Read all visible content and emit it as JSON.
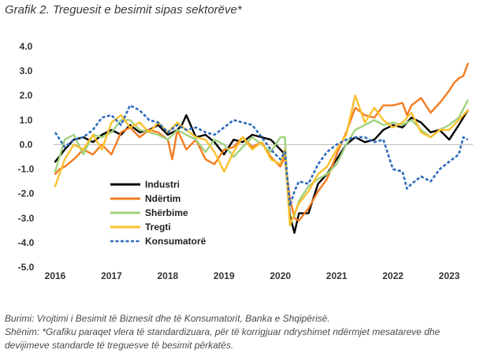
{
  "title": "Grafik 2. Treguesit e besimit sipas sektorëve*",
  "chart_data": {
    "type": "line",
    "x_ticks": [
      "2016",
      "2017",
      "2018",
      "2019",
      "2020",
      "2021",
      "2022",
      "2023"
    ],
    "y_ticks": [
      "4.0",
      "3.0",
      "2.0",
      "1.0",
      "0.0",
      "-1.0",
      "-2.0",
      "-3.0",
      "-4.0",
      "-5.0"
    ],
    "ylim": [
      -5.0,
      4.0
    ],
    "xlim": [
      2016.0,
      2023.42
    ],
    "legend_position": "center-left",
    "series": [
      {
        "name": "Industri",
        "color": "#000000",
        "dash": false,
        "points": [
          [
            2016.0,
            -0.7
          ],
          [
            2016.17,
            -0.2
          ],
          [
            2016.33,
            0.2
          ],
          [
            2016.5,
            0.3
          ],
          [
            2016.67,
            0.1
          ],
          [
            2016.83,
            0.4
          ],
          [
            2017.0,
            0.6
          ],
          [
            2017.17,
            0.4
          ],
          [
            2017.33,
            0.8
          ],
          [
            2017.5,
            0.5
          ],
          [
            2017.67,
            0.6
          ],
          [
            2017.83,
            0.8
          ],
          [
            2018.0,
            0.4
          ],
          [
            2018.17,
            0.6
          ],
          [
            2018.25,
            0.8
          ],
          [
            2018.33,
            1.2
          ],
          [
            2018.5,
            0.3
          ],
          [
            2018.67,
            0.4
          ],
          [
            2018.83,
            0.1
          ],
          [
            2019.0,
            -0.4
          ],
          [
            2019.17,
            0.2
          ],
          [
            2019.33,
            0.1
          ],
          [
            2019.5,
            0.4
          ],
          [
            2019.67,
            0.3
          ],
          [
            2019.83,
            0.2
          ],
          [
            2020.0,
            -0.2
          ],
          [
            2020.08,
            -0.4
          ],
          [
            2020.17,
            -2.9
          ],
          [
            2020.25,
            -3.6
          ],
          [
            2020.33,
            -2.8
          ],
          [
            2020.5,
            -2.8
          ],
          [
            2020.67,
            -1.6
          ],
          [
            2020.83,
            -1.2
          ],
          [
            2021.0,
            -0.6
          ],
          [
            2021.17,
            0.0
          ],
          [
            2021.33,
            0.3
          ],
          [
            2021.5,
            0.1
          ],
          [
            2021.67,
            0.2
          ],
          [
            2021.83,
            0.6
          ],
          [
            2022.0,
            0.8
          ],
          [
            2022.17,
            0.7
          ],
          [
            2022.33,
            1.1
          ],
          [
            2022.5,
            0.9
          ],
          [
            2022.67,
            0.5
          ],
          [
            2022.83,
            0.6
          ],
          [
            2023.0,
            0.2
          ],
          [
            2023.17,
            0.8
          ],
          [
            2023.33,
            1.4
          ]
        ]
      },
      {
        "name": "Ndërtim",
        "color": "#f47c20",
        "dash": false,
        "points": [
          [
            2016.0,
            -1.2
          ],
          [
            2016.08,
            -1.0
          ],
          [
            2016.17,
            -0.9
          ],
          [
            2016.33,
            -0.6
          ],
          [
            2016.5,
            -0.2
          ],
          [
            2016.67,
            -0.4
          ],
          [
            2016.83,
            0.0
          ],
          [
            2017.0,
            -0.4
          ],
          [
            2017.17,
            0.5
          ],
          [
            2017.33,
            0.7
          ],
          [
            2017.5,
            0.3
          ],
          [
            2017.67,
            0.6
          ],
          [
            2017.83,
            0.5
          ],
          [
            2018.0,
            0.2
          ],
          [
            2018.08,
            -0.6
          ],
          [
            2018.17,
            0.6
          ],
          [
            2018.33,
            -0.2
          ],
          [
            2018.5,
            0.2
          ],
          [
            2018.67,
            -0.6
          ],
          [
            2018.83,
            -0.8
          ],
          [
            2019.0,
            -0.2
          ],
          [
            2019.17,
            -0.1
          ],
          [
            2019.33,
            0.3
          ],
          [
            2019.5,
            -0.1
          ],
          [
            2019.67,
            0.1
          ],
          [
            2019.83,
            -0.5
          ],
          [
            2020.0,
            -0.9
          ],
          [
            2020.08,
            -0.5
          ],
          [
            2020.17,
            -2.2
          ],
          [
            2020.25,
            -3.0
          ],
          [
            2020.33,
            -3.1
          ],
          [
            2020.5,
            -2.6
          ],
          [
            2020.67,
            -1.9
          ],
          [
            2020.83,
            -1.4
          ],
          [
            2021.0,
            -0.4
          ],
          [
            2021.17,
            0.5
          ],
          [
            2021.33,
            1.5
          ],
          [
            2021.5,
            1.2
          ],
          [
            2021.67,
            1.1
          ],
          [
            2021.83,
            1.6
          ],
          [
            2022.0,
            1.6
          ],
          [
            2022.17,
            1.7
          ],
          [
            2022.25,
            1.2
          ],
          [
            2022.33,
            1.6
          ],
          [
            2022.5,
            1.9
          ],
          [
            2022.67,
            1.3
          ],
          [
            2022.83,
            1.7
          ],
          [
            2023.0,
            2.2
          ],
          [
            2023.08,
            2.5
          ],
          [
            2023.17,
            2.7
          ],
          [
            2023.25,
            2.8
          ],
          [
            2023.33,
            3.3
          ]
        ]
      },
      {
        "name": "Shërbime",
        "color": "#9fd27e",
        "dash": false,
        "points": [
          [
            2016.0,
            -1.1
          ],
          [
            2016.17,
            0.2
          ],
          [
            2016.33,
            0.4
          ],
          [
            2016.5,
            -0.4
          ],
          [
            2016.67,
            0.4
          ],
          [
            2016.83,
            0.3
          ],
          [
            2017.0,
            0.5
          ],
          [
            2017.17,
            1.0
          ],
          [
            2017.33,
            1.0
          ],
          [
            2017.5,
            0.6
          ],
          [
            2017.67,
            0.5
          ],
          [
            2017.83,
            0.4
          ],
          [
            2018.0,
            0.2
          ],
          [
            2018.17,
            0.6
          ],
          [
            2018.33,
            0.4
          ],
          [
            2018.5,
            0.2
          ],
          [
            2018.67,
            -0.3
          ],
          [
            2018.83,
            0.2
          ],
          [
            2019.0,
            0.0
          ],
          [
            2019.17,
            -0.5
          ],
          [
            2019.33,
            -0.1
          ],
          [
            2019.5,
            0.3
          ],
          [
            2019.67,
            0.0
          ],
          [
            2019.83,
            -0.3
          ],
          [
            2020.0,
            0.3
          ],
          [
            2020.08,
            0.3
          ],
          [
            2020.17,
            -3.2
          ],
          [
            2020.25,
            -2.9
          ],
          [
            2020.33,
            -2.3
          ],
          [
            2020.5,
            -1.7
          ],
          [
            2020.67,
            -1.4
          ],
          [
            2020.83,
            -1.2
          ],
          [
            2021.0,
            -0.8
          ],
          [
            2021.17,
            0.0
          ],
          [
            2021.33,
            0.6
          ],
          [
            2021.5,
            0.8
          ],
          [
            2021.67,
            1.0
          ],
          [
            2021.83,
            0.8
          ],
          [
            2022.0,
            0.9
          ],
          [
            2022.17,
            0.8
          ],
          [
            2022.33,
            1.0
          ],
          [
            2022.5,
            0.6
          ],
          [
            2022.67,
            0.3
          ],
          [
            2022.83,
            0.6
          ],
          [
            2023.0,
            0.8
          ],
          [
            2023.17,
            1.1
          ],
          [
            2023.33,
            1.8
          ]
        ]
      },
      {
        "name": "Tregti",
        "color": "#fbc02d",
        "dash": false,
        "points": [
          [
            2016.0,
            -1.7
          ],
          [
            2016.17,
            -0.6
          ],
          [
            2016.33,
            0.0
          ],
          [
            2016.5,
            -0.2
          ],
          [
            2016.67,
            0.4
          ],
          [
            2016.83,
            -0.2
          ],
          [
            2017.0,
            0.9
          ],
          [
            2017.17,
            1.2
          ],
          [
            2017.33,
            0.7
          ],
          [
            2017.5,
            0.9
          ],
          [
            2017.67,
            0.5
          ],
          [
            2017.83,
            0.9
          ],
          [
            2018.0,
            0.5
          ],
          [
            2018.17,
            0.9
          ],
          [
            2018.33,
            0.6
          ],
          [
            2018.5,
            0.3
          ],
          [
            2018.67,
            0.2
          ],
          [
            2018.83,
            -0.3
          ],
          [
            2019.0,
            -1.1
          ],
          [
            2019.17,
            -0.3
          ],
          [
            2019.33,
            0.3
          ],
          [
            2019.5,
            -0.2
          ],
          [
            2019.67,
            0.1
          ],
          [
            2019.83,
            -0.6
          ],
          [
            2020.0,
            -0.8
          ],
          [
            2020.08,
            -0.2
          ],
          [
            2020.17,
            -3.3
          ],
          [
            2020.25,
            -2.8
          ],
          [
            2020.33,
            -2.4
          ],
          [
            2020.5,
            -1.9
          ],
          [
            2020.67,
            -1.2
          ],
          [
            2020.83,
            -0.9
          ],
          [
            2021.0,
            -0.2
          ],
          [
            2021.17,
            0.4
          ],
          [
            2021.33,
            2.0
          ],
          [
            2021.5,
            0.9
          ],
          [
            2021.67,
            1.5
          ],
          [
            2021.83,
            1.0
          ],
          [
            2022.0,
            0.7
          ],
          [
            2022.17,
            0.9
          ],
          [
            2022.33,
            1.3
          ],
          [
            2022.5,
            0.5
          ],
          [
            2022.67,
            0.3
          ],
          [
            2022.83,
            0.6
          ],
          [
            2023.0,
            0.6
          ],
          [
            2023.17,
            1.0
          ],
          [
            2023.33,
            1.4
          ]
        ]
      },
      {
        "name": "Konsumatorë",
        "color": "#2e6bbd",
        "dash": true,
        "points": [
          [
            2016.0,
            0.5
          ],
          [
            2016.17,
            -0.1
          ],
          [
            2016.33,
            0.2
          ],
          [
            2016.5,
            0.3
          ],
          [
            2016.67,
            0.6
          ],
          [
            2016.83,
            1.1
          ],
          [
            2017.0,
            1.2
          ],
          [
            2017.17,
            0.8
          ],
          [
            2017.33,
            1.6
          ],
          [
            2017.5,
            1.4
          ],
          [
            2017.67,
            1.0
          ],
          [
            2017.83,
            0.9
          ],
          [
            2018.0,
            0.5
          ],
          [
            2018.17,
            0.8
          ],
          [
            2018.33,
            0.6
          ],
          [
            2018.5,
            0.7
          ],
          [
            2018.67,
            0.5
          ],
          [
            2018.83,
            0.4
          ],
          [
            2019.0,
            0.7
          ],
          [
            2019.17,
            1.0
          ],
          [
            2019.33,
            0.9
          ],
          [
            2019.5,
            0.8
          ],
          [
            2019.67,
            0.3
          ],
          [
            2019.83,
            -0.2
          ],
          [
            2020.0,
            -0.6
          ],
          [
            2020.08,
            -0.3
          ],
          [
            2020.17,
            -2.5
          ],
          [
            2020.25,
            -1.9
          ],
          [
            2020.33,
            -1.5
          ],
          [
            2020.5,
            -1.6
          ],
          [
            2020.67,
            -0.8
          ],
          [
            2020.83,
            -0.3
          ],
          [
            2021.0,
            0.0
          ],
          [
            2021.17,
            0.2
          ],
          [
            2021.33,
            0.3
          ],
          [
            2021.5,
            0.3
          ],
          [
            2021.67,
            0.1
          ],
          [
            2021.83,
            0.2
          ],
          [
            2022.0,
            -1.0
          ],
          [
            2022.17,
            -1.1
          ],
          [
            2022.25,
            -1.8
          ],
          [
            2022.33,
            -1.6
          ],
          [
            2022.5,
            -1.3
          ],
          [
            2022.67,
            -1.5
          ],
          [
            2022.83,
            -1.0
          ],
          [
            2023.0,
            -0.7
          ],
          [
            2023.17,
            -0.4
          ],
          [
            2023.25,
            0.3
          ],
          [
            2023.33,
            0.2
          ]
        ]
      }
    ]
  },
  "footer": {
    "source": "Burimi: Vrojtimi i Besimit të Biznesit dhe të Konsumatorit, Banka e Shqipërisë.",
    "note": "Shënim: *Grafiku paraqet vlera të standardizuara, për të korrigjuar ndryshimet ndërmjet mesatareve dhe devijimeve standarde të treguesve të besimit përkatës."
  }
}
